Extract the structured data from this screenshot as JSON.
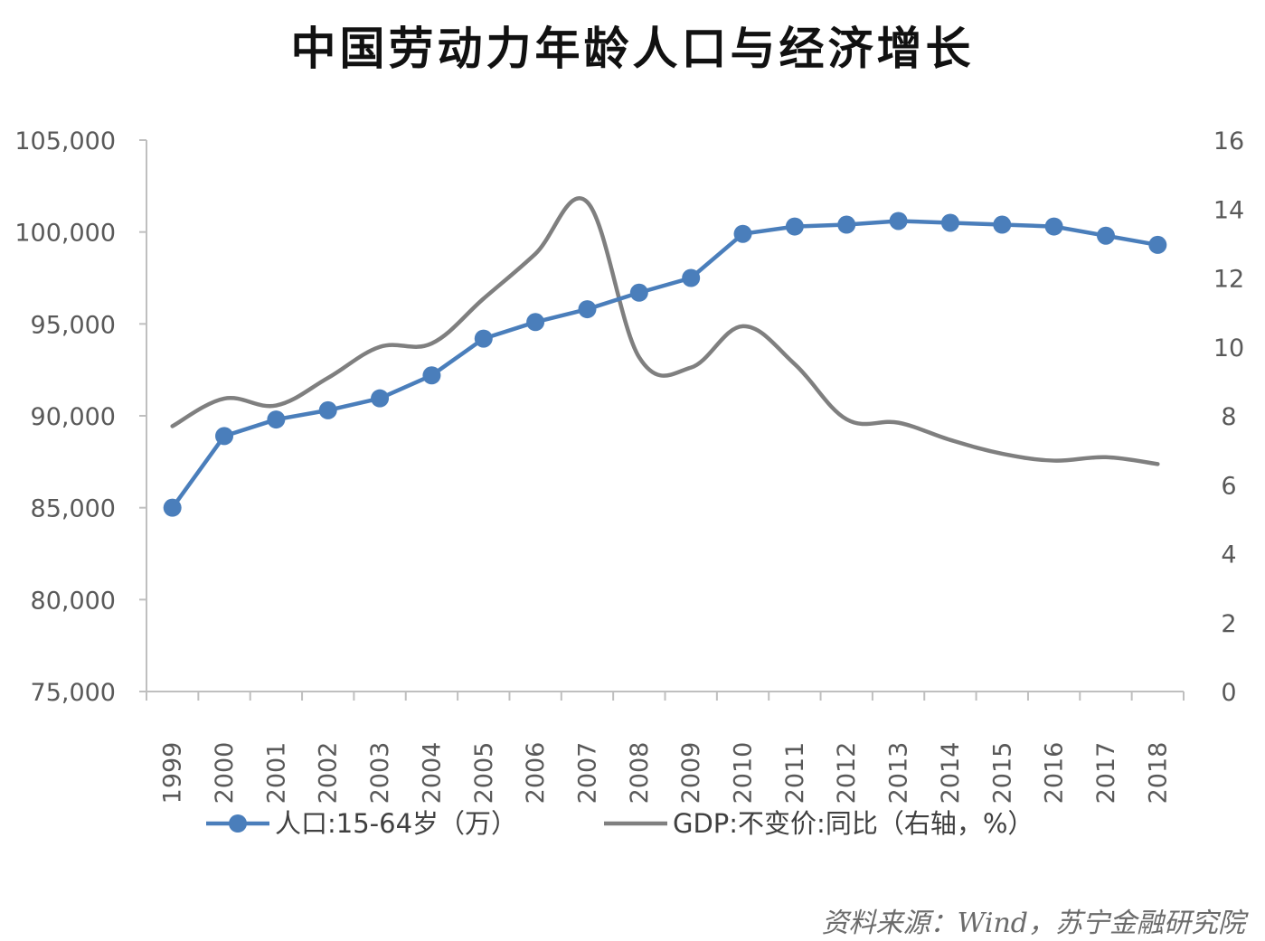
{
  "colors": {
    "population": "#4a7ebb",
    "gdp": "#7f7f7f",
    "axis": "#bfbfbf"
  },
  "source": "资料来源：Wind，苏宁金融研究院",
  "chart_data": {
    "type": "line",
    "title": "中国劳动力年龄人口与经济增长",
    "categories": [
      "1999",
      "2000",
      "2001",
      "2002",
      "2003",
      "2004",
      "2005",
      "2006",
      "2007",
      "2008",
      "2009",
      "2010",
      "2011",
      "2012",
      "2013",
      "2014",
      "2015",
      "2016",
      "2017",
      "2018"
    ],
    "y_left": {
      "min": 75000,
      "max": 105000,
      "step": 5000,
      "tick_labels": [
        "75,000",
        "80,000",
        "85,000",
        "90,000",
        "95,000",
        "100,000",
        "105,000"
      ]
    },
    "y_right": {
      "min": 0,
      "max": 16,
      "step": 2,
      "tick_labels": [
        "0",
        "2",
        "4",
        "6",
        "8",
        "10",
        "12",
        "14",
        "16"
      ]
    },
    "series": [
      {
        "name": "人口:15-64岁（万）",
        "axis": "left",
        "marker": "circle",
        "values": [
          85000,
          88900,
          89800,
          90300,
          90950,
          92200,
          94200,
          95100,
          95800,
          96700,
          97500,
          99900,
          100300,
          100400,
          100600,
          100500,
          100400,
          100300,
          99800,
          99300
        ]
      },
      {
        "name": "GDP:不变价:同比（右轴，%）",
        "axis": "right",
        "marker": "none",
        "smooth": true,
        "values": [
          7.7,
          8.5,
          8.3,
          9.1,
          10.0,
          10.1,
          11.4,
          12.7,
          14.2,
          9.7,
          9.4,
          10.6,
          9.5,
          7.9,
          7.8,
          7.3,
          6.9,
          6.7,
          6.8,
          6.6
        ]
      }
    ],
    "legend": "bottom",
    "grid": false
  }
}
